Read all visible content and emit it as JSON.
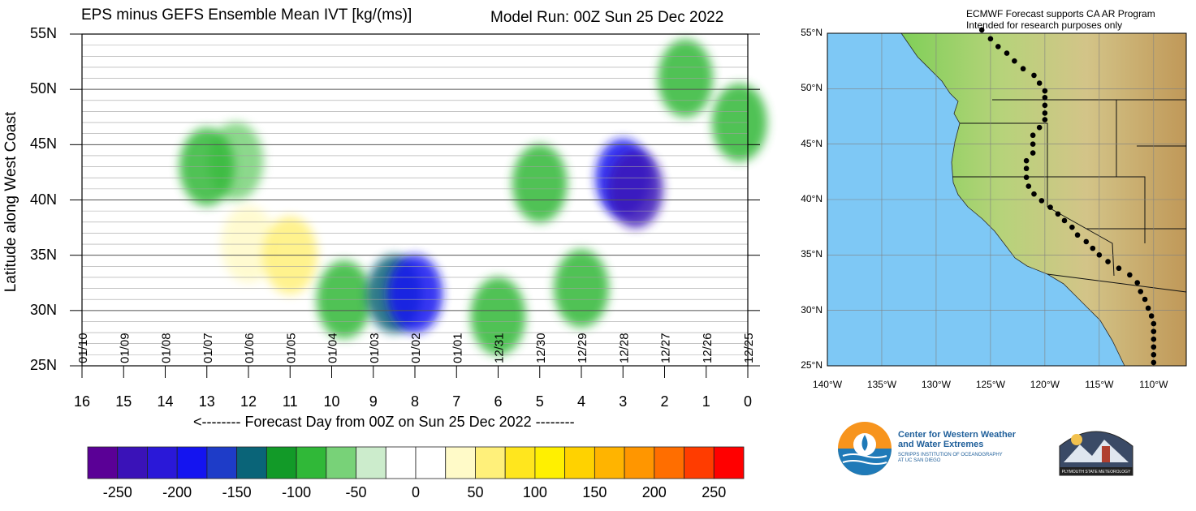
{
  "header": {
    "title": "EPS minus GEFS Ensemble Mean IVT [kg/(ms)]",
    "model_run": "Model Run: 00Z Sun 25 Dec 2022"
  },
  "chart_data": {
    "type": "heatmap",
    "title": "EPS minus GEFS Ensemble Mean IVT [kg/(ms)]",
    "ylabel": "Latitude along West Coast",
    "xlabel": "<-------- Forecast Day from 00Z on Sun 25 Dec 2022 --------",
    "xlim": [
      16,
      0
    ],
    "ylim": [
      25,
      55
    ],
    "x_ticks": [
      "16",
      "15",
      "14",
      "13",
      "12",
      "11",
      "10",
      "9",
      "8",
      "7",
      "6",
      "5",
      "4",
      "3",
      "2",
      "1",
      "0"
    ],
    "y_ticks": [
      "25N",
      "30N",
      "35N",
      "40N",
      "45N",
      "50N",
      "55N"
    ],
    "date_labels": [
      "01/10",
      "01/09",
      "01/08",
      "01/07",
      "01/06",
      "01/05",
      "01/04",
      "01/03",
      "01/02",
      "01/01",
      "12/31",
      "12/30",
      "12/29",
      "12/28",
      "12/27",
      "12/26",
      "12/25"
    ],
    "grid": true,
    "colorbar": {
      "ticks": [
        "-250",
        "-200",
        "-150",
        "-100",
        "-50",
        "0",
        "50",
        "100",
        "150",
        "200",
        "250"
      ],
      "colors": [
        "#5a0096",
        "#3a12b8",
        "#2a18d8",
        "#1414f0",
        "#1e3cc8",
        "#0a6478",
        "#129a28",
        "#30b838",
        "#78d278",
        "#cceccc",
        "#ffffff",
        "#ffffff",
        "#fffac8",
        "#fff07a",
        "#ffe61e",
        "#fff000",
        "#ffd200",
        "#ffb400",
        "#ff9600",
        "#ff6e00",
        "#ff3c00",
        "#ff0000"
      ]
    },
    "anomalies": [
      {
        "day": 12.3,
        "lat": 43.5,
        "value": -75
      },
      {
        "day": 13.0,
        "lat": 43.0,
        "value": -100
      },
      {
        "day": 12.0,
        "lat": 36.0,
        "value": 45
      },
      {
        "day": 11.0,
        "lat": 35.0,
        "value": 50
      },
      {
        "day": 9.7,
        "lat": 31.0,
        "value": -100
      },
      {
        "day": 8.5,
        "lat": 31.5,
        "value": -130
      },
      {
        "day": 8.0,
        "lat": 31.5,
        "value": -180
      },
      {
        "day": 6.0,
        "lat": 29.5,
        "value": -90
      },
      {
        "day": 5.0,
        "lat": 41.5,
        "value": -90
      },
      {
        "day": 4.0,
        "lat": 32.0,
        "value": -100
      },
      {
        "day": 3.0,
        "lat": 42.0,
        "value": -200
      },
      {
        "day": 2.7,
        "lat": 41.0,
        "value": -250
      },
      {
        "day": 1.5,
        "lat": 51.0,
        "value": -90
      },
      {
        "day": 0.2,
        "lat": 47.0,
        "value": -90
      }
    ]
  },
  "map": {
    "note_line1": "ECMWF Forecast supports CA AR Program",
    "note_line2": "Intended for research purposes only",
    "lat_labels": [
      "55°N",
      "50°N",
      "45°N",
      "40°N",
      "35°N",
      "30°N",
      "25°N"
    ],
    "lon_labels": [
      "140°W",
      "135°W",
      "130°W",
      "125°W",
      "120°W",
      "115°W",
      "110°W"
    ],
    "colors": {
      "ocean": "#7ec8f5",
      "land_low": "#8fcf5c",
      "land_high": "#c8a060",
      "dots": "#000000"
    }
  },
  "logos": {
    "cw3e_name_line1": "Center for Western Weather",
    "cw3e_name_line2": "and Water Extremes",
    "cw3e_sub_line1": "SCRIPPS INSTITUTION OF OCEANOGRAPHY",
    "cw3e_sub_line2": "AT UC SAN DIEGO",
    "psu_text": "PLYMOUTH STATE METEOROLOGY"
  }
}
